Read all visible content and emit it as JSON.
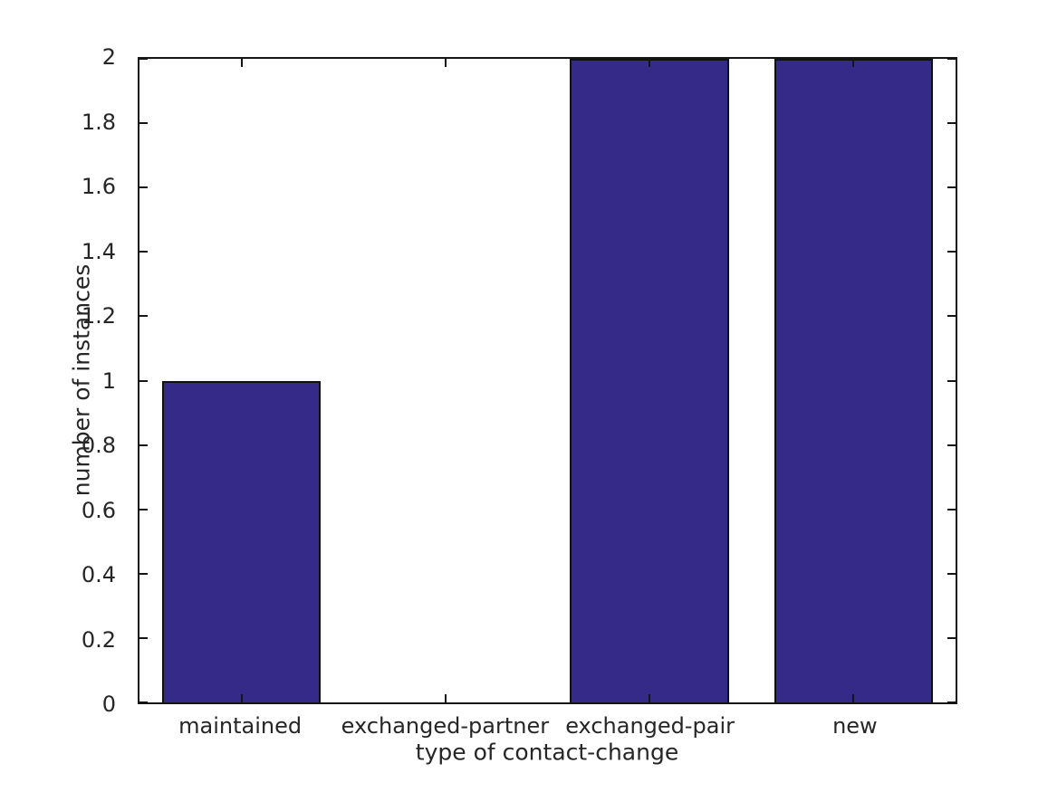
{
  "chart_data": {
    "type": "bar",
    "title": "",
    "categories": [
      "maintained",
      "exchanged-partner",
      "exchanged-pair",
      "new"
    ],
    "values": [
      1,
      0,
      2,
      2
    ],
    "xlabel": "type of contact-change",
    "ylabel": "number of instances",
    "ylim": [
      0,
      2
    ],
    "yticks": [
      0,
      0.2,
      0.4,
      0.6,
      0.8,
      1,
      1.2,
      1.4,
      1.6,
      1.8,
      2
    ],
    "ytick_labels": [
      "0",
      "0.2",
      "0.4",
      "0.6",
      "0.8",
      "1",
      "1.2",
      "1.4",
      "1.6",
      "1.8",
      "2"
    ],
    "bar_width_fraction_of_slot": 0.78,
    "bar_color": "#352a87",
    "bar_edge_color": "#10101a",
    "axis_color": "#151515",
    "text_color": "#262626",
    "grid": false,
    "legend": null,
    "background_color": "#ffffff"
  }
}
